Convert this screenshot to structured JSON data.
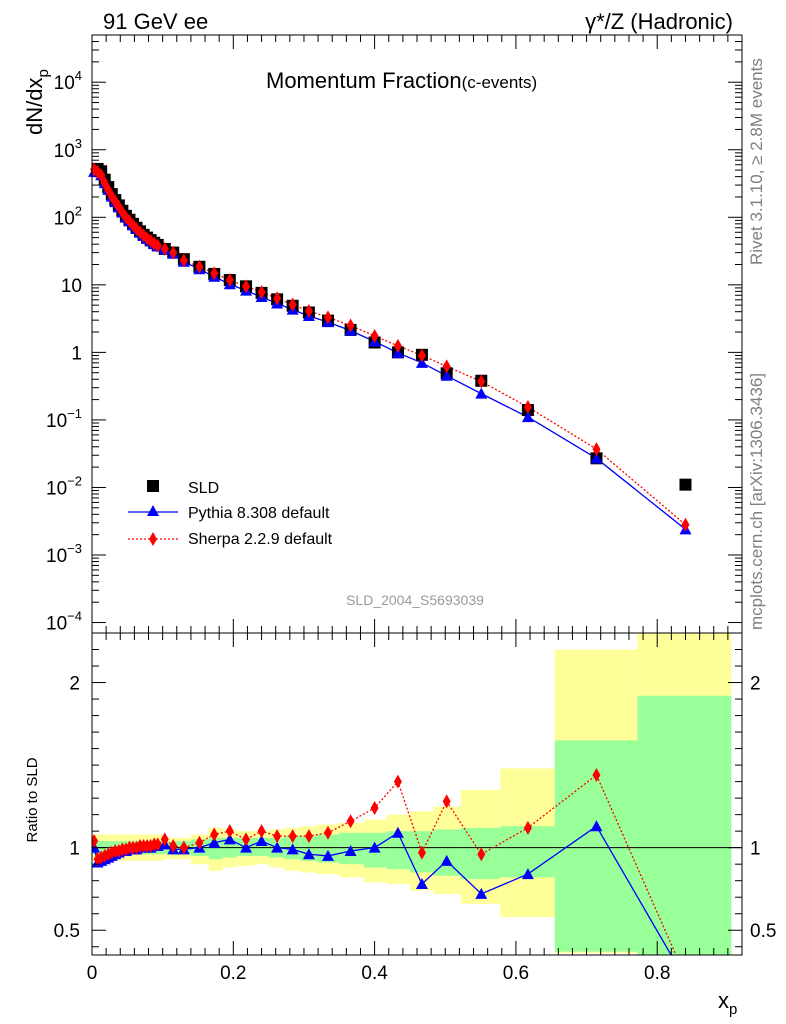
{
  "header": {
    "left": "91 GeV ee",
    "right": "γ*/Z (Hadronic)",
    "title_main": "Momentum Fraction",
    "title_sub": "(c-events)",
    "watermark": "SLD_2004_S5693039"
  },
  "side_labels": {
    "top": "Rivet 3.1.10, ≥ 2.8M events",
    "bottom": "mcplots.cern.ch [arXiv:1306.3436]"
  },
  "colors": {
    "data": "#000000",
    "pythia": "#0000ff",
    "sherpa": "#ff0000",
    "band_inner": "#99ff99",
    "band_outer": "#ffff99"
  },
  "chart_data": [
    {
      "type": "line",
      "ylabel_base": "dN/dx",
      "ylabel_sub": "p",
      "yscale": "log",
      "ylim": [
        7e-05,
        50000
      ],
      "xlim": [
        0,
        0.92
      ],
      "x_ticks": [
        0,
        0.2,
        0.4,
        0.6,
        0.8
      ],
      "y_ticks": [
        {
          "base": "10",
          "exp": "−4"
        },
        {
          "base": "10",
          "exp": "−3"
        },
        {
          "base": "10",
          "exp": "−2"
        },
        {
          "base": "10",
          "exp": "−1"
        },
        {
          "base": "1",
          "exp": ""
        },
        {
          "base": "10",
          "exp": ""
        },
        {
          "base": "10",
          "exp": "2"
        },
        {
          "base": "10",
          "exp": "3"
        },
        {
          "base": "10",
          "exp": "4"
        }
      ],
      "y_tick_values": [
        0.0001,
        0.001,
        0.01,
        0.1,
        1,
        10,
        100,
        1000,
        10000
      ],
      "legend_position": "bottom-left",
      "series": [
        {
          "name": "SLD",
          "marker": "square",
          "x": [
            0.008,
            0.013,
            0.018,
            0.023,
            0.028,
            0.033,
            0.038,
            0.043,
            0.048,
            0.053,
            0.058,
            0.063,
            0.068,
            0.073,
            0.078,
            0.083,
            0.088,
            0.093,
            0.103,
            0.115,
            0.13,
            0.152,
            0.173,
            0.195,
            0.218,
            0.24,
            0.262,
            0.284,
            0.307,
            0.334,
            0.366,
            0.4,
            0.433,
            0.467,
            0.502,
            0.551,
            0.617,
            0.714,
            0.84
          ],
          "y": [
            520,
            480,
            360,
            280,
            220,
            180,
            150,
            125,
            105,
            92,
            80,
            70,
            62,
            55,
            50,
            46,
            42,
            39,
            34,
            30,
            24,
            18.5,
            14.5,
            11.8,
            9.5,
            7.6,
            6.1,
            4.9,
            3.9,
            2.95,
            2.15,
            1.4,
            1.0,
            0.92,
            0.49,
            0.38,
            0.14,
            0.027,
            0.011
          ]
        },
        {
          "name": "Pythia 8.308 default",
          "marker": "triangle",
          "x": [
            0.003,
            0.008,
            0.013,
            0.018,
            0.023,
            0.028,
            0.033,
            0.038,
            0.043,
            0.048,
            0.053,
            0.058,
            0.063,
            0.068,
            0.073,
            0.078,
            0.083,
            0.088,
            0.093,
            0.103,
            0.115,
            0.13,
            0.152,
            0.173,
            0.195,
            0.218,
            0.24,
            0.262,
            0.284,
            0.307,
            0.334,
            0.366,
            0.4,
            0.433,
            0.467,
            0.502,
            0.551,
            0.617,
            0.714,
            0.84
          ],
          "y": [
            470,
            470,
            420,
            320,
            255,
            202,
            168,
            140,
            117,
            99,
            87,
            76,
            67,
            59,
            53,
            48,
            44,
            40,
            37,
            33,
            29,
            22,
            17,
            13.2,
            10.2,
            8.2,
            6.6,
            5.3,
            4.3,
            3.45,
            2.8,
            2.1,
            1.45,
            0.98,
            0.7,
            0.45,
            0.245,
            0.11,
            0.027,
            0.0024
          ]
        },
        {
          "name": "Sherpa 2.2.9 default",
          "marker": "diamond",
          "x": [
            0.003,
            0.008,
            0.013,
            0.018,
            0.023,
            0.028,
            0.033,
            0.038,
            0.043,
            0.048,
            0.053,
            0.058,
            0.063,
            0.068,
            0.073,
            0.078,
            0.083,
            0.088,
            0.093,
            0.103,
            0.115,
            0.13,
            0.152,
            0.173,
            0.195,
            0.218,
            0.24,
            0.262,
            0.284,
            0.307,
            0.334,
            0.366,
            0.4,
            0.433,
            0.467,
            0.502,
            0.551,
            0.617,
            0.714,
            0.84
          ],
          "y": [
            510,
            470,
            420,
            320,
            255,
            205,
            170,
            142,
            118,
            100,
            88,
            77,
            67,
            60,
            54,
            49,
            45,
            41,
            38,
            34,
            30,
            23,
            18.5,
            14.8,
            11.8,
            9.5,
            7.8,
            6.3,
            5.1,
            4.1,
            3.3,
            2.5,
            1.75,
            1.25,
            0.9,
            0.62,
            0.37,
            0.155,
            0.037,
            0.0028
          ]
        }
      ]
    },
    {
      "type": "line",
      "ylabel": "Ratio to SLD",
      "xlabel_base": "x",
      "xlabel_sub": "p",
      "ylim": [
        0.35,
        2.3
      ],
      "xlim": [
        0,
        0.92
      ],
      "y_ticks": [
        "0.5",
        "1",
        "2"
      ],
      "y_tick_values": [
        0.5,
        1,
        2
      ],
      "x_ticks": [
        "0",
        "0.2",
        "0.4",
        "0.6",
        "0.8"
      ],
      "x_tick_values": [
        0,
        0.2,
        0.4,
        0.6,
        0.8
      ],
      "bands": {
        "edges": [
          0,
          0.1,
          0.14,
          0.165,
          0.185,
          0.205,
          0.23,
          0.25,
          0.272,
          0.295,
          0.318,
          0.35,
          0.385,
          0.417,
          0.45,
          0.483,
          0.522,
          0.578,
          0.655,
          0.772,
          0.905
        ],
        "inner_lo": [
          0.96,
          0.96,
          0.95,
          0.93,
          0.94,
          0.95,
          0.95,
          0.94,
          0.93,
          0.92,
          0.91,
          0.9,
          0.88,
          0.87,
          0.85,
          0.83,
          0.81,
          0.82,
          0.37,
          0.35
        ],
        "inner_hi": [
          1.04,
          1.04,
          1.05,
          1.06,
          1.06,
          1.06,
          1.06,
          1.06,
          1.07,
          1.07,
          1.08,
          1.09,
          1.09,
          1.1,
          1.1,
          1.11,
          1.12,
          1.13,
          1.65,
          1.92
        ],
        "outer_lo": [
          0.92,
          0.93,
          0.9,
          0.86,
          0.88,
          0.89,
          0.9,
          0.88,
          0.86,
          0.85,
          0.84,
          0.82,
          0.79,
          0.78,
          0.74,
          0.72,
          0.66,
          0.58,
          0.36,
          0.35
        ],
        "outer_hi": [
          1.08,
          1.06,
          1.08,
          1.12,
          1.11,
          1.1,
          1.1,
          1.11,
          1.12,
          1.13,
          1.14,
          1.15,
          1.17,
          1.2,
          1.22,
          1.25,
          1.35,
          1.48,
          2.2,
          2.3
        ]
      },
      "series": [
        {
          "name": "Pythia 8.308 default",
          "x": [
            0.003,
            0.008,
            0.013,
            0.018,
            0.023,
            0.028,
            0.033,
            0.038,
            0.043,
            0.048,
            0.053,
            0.058,
            0.063,
            0.068,
            0.073,
            0.078,
            0.083,
            0.088,
            0.093,
            0.103,
            0.115,
            0.13,
            0.152,
            0.173,
            0.195,
            0.218,
            0.24,
            0.262,
            0.284,
            0.307,
            0.334,
            0.366,
            0.4,
            0.433,
            0.467,
            0.502,
            0.551,
            0.617,
            0.714,
            0.84
          ],
          "y": [
            1.0,
            0.91,
            0.92,
            0.93,
            0.94,
            0.95,
            0.96,
            0.97,
            0.98,
            0.98,
            0.99,
            0.99,
            0.99,
            1.0,
            1.0,
            1.0,
            1.0,
            1.01,
            1.01,
            1.02,
            0.99,
            0.99,
            1.0,
            1.03,
            1.05,
            1.0,
            1.04,
            1.0,
            0.99,
            0.96,
            0.95,
            0.98,
            1.0,
            1.09,
            0.78,
            0.92,
            0.72,
            0.84,
            1.13,
            0.2
          ]
        },
        {
          "name": "Sherpa 2.2.9 default",
          "x": [
            0.003,
            0.008,
            0.013,
            0.018,
            0.023,
            0.028,
            0.033,
            0.038,
            0.043,
            0.048,
            0.053,
            0.058,
            0.063,
            0.068,
            0.073,
            0.078,
            0.083,
            0.088,
            0.093,
            0.103,
            0.115,
            0.13,
            0.152,
            0.173,
            0.195,
            0.218,
            0.24,
            0.262,
            0.284,
            0.307,
            0.334,
            0.366,
            0.4,
            0.433,
            0.467,
            0.502,
            0.551,
            0.617,
            0.714,
            0.84
          ],
          "y": [
            1.04,
            0.93,
            0.94,
            0.95,
            0.96,
            0.97,
            0.98,
            0.98,
            0.99,
            0.99,
            1.0,
            1.0,
            1.0,
            1.01,
            1.01,
            1.01,
            1.01,
            1.02,
            1.02,
            1.05,
            1.01,
            1.0,
            1.03,
            1.08,
            1.1,
            1.05,
            1.1,
            1.07,
            1.07,
            1.07,
            1.09,
            1.16,
            1.24,
            1.4,
            0.97,
            1.28,
            0.96,
            1.12,
            1.44,
            0.22
          ]
        }
      ]
    }
  ]
}
